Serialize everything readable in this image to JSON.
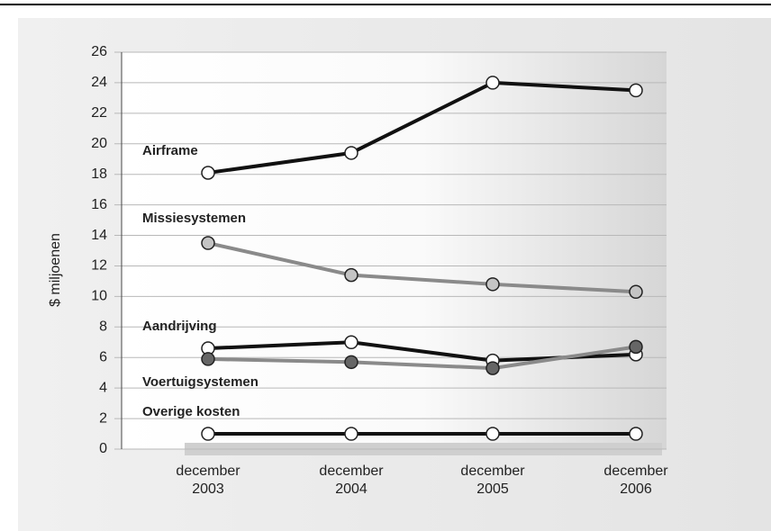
{
  "chart_data": {
    "type": "line",
    "y_label": "$ miljoenen",
    "categories": [
      "december 2003",
      "december 2004",
      "december 2005",
      "december 2006"
    ],
    "series": [
      {
        "name": "Airframe",
        "color": "#111111",
        "marker_color": "#ffffff",
        "values": [
          18.1,
          19.4,
          24,
          23.5
        ]
      },
      {
        "name": "Missiesystemen",
        "color": "#8a8a8a",
        "marker_color": "#c4c4c4",
        "values": [
          13.5,
          11.4,
          10.8,
          10.3
        ]
      },
      {
        "name": "Aandrijving",
        "color": "#111111",
        "marker_color": "#ffffff",
        "values": [
          6.6,
          7.0,
          5.8,
          6.2
        ]
      },
      {
        "name": "Voertuigsystemen",
        "color": "#8a8a8a",
        "marker_color": "#666666",
        "values": [
          5.9,
          5.7,
          5.3,
          6.7
        ]
      },
      {
        "name": "Overige kosten",
        "color": "#111111",
        "marker_color": "#ffffff",
        "values": [
          1,
          1,
          1,
          1
        ]
      }
    ],
    "ylim": [
      0,
      26
    ],
    "yticks": [
      0,
      2,
      4,
      6,
      8,
      10,
      12,
      14,
      16,
      18,
      20,
      22,
      24,
      26
    ],
    "grid": true
  }
}
